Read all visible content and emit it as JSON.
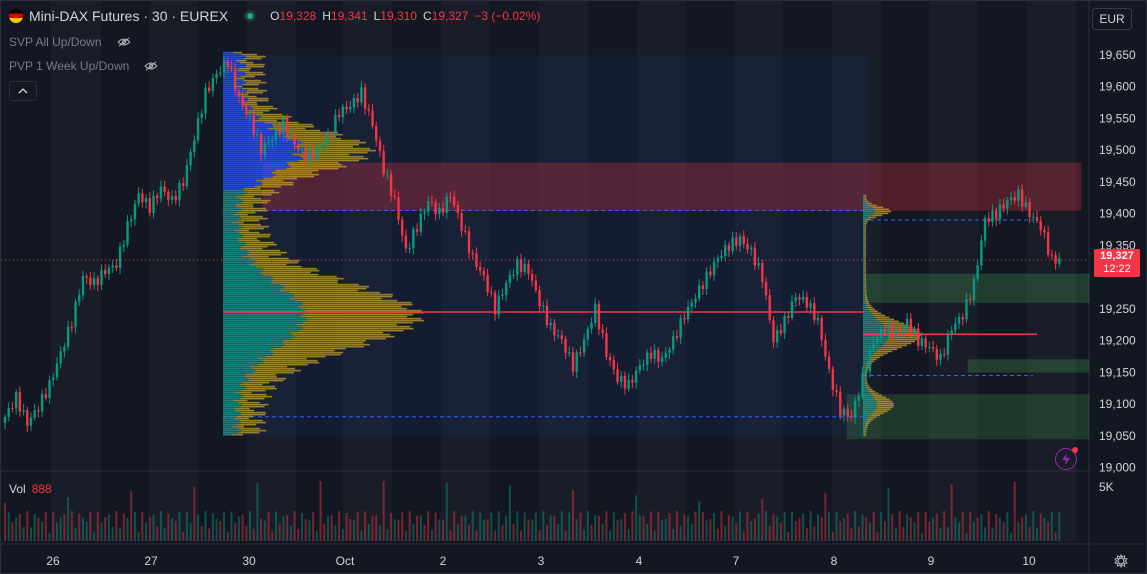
{
  "symbol": {
    "title": "Mini-DAX Futures · 30 · EUREX"
  },
  "ohlc": {
    "o_label": "O",
    "o": "19,328",
    "h_label": "H",
    "h": "19,341",
    "l_label": "L",
    "l": "19,310",
    "c_label": "C",
    "c": "19,327",
    "change": "−3 (−0.02%)"
  },
  "indicators": [
    {
      "label": "SVP All Up/Down"
    },
    {
      "label": "PVP 1 Week Up/Down"
    }
  ],
  "currency": "EUR",
  "volume": {
    "label": "Vol",
    "value": "888"
  },
  "last_price": {
    "price": "19,327",
    "countdown": "12:22"
  },
  "price_axis": [
    "19,650",
    "19,600",
    "19,550",
    "19,500",
    "19,450",
    "19,400",
    "19,350",
    "19,250",
    "19,200",
    "19,150",
    "19,100",
    "19,050",
    "19,000"
  ],
  "volume_axis": "5K",
  "time_axis": [
    "26",
    "27",
    "30",
    "Oct",
    "2",
    "3",
    "4",
    "7",
    "8",
    "9",
    "10"
  ],
  "colors": {
    "bg": "#131722",
    "up": "#089981",
    "down": "#f23645",
    "poc": "#f23645",
    "vp_up": "#2962ff",
    "vp_down": "#c9a227",
    "zone_red": "#f23645",
    "zone_green": "#4caf50"
  },
  "chart_data": {
    "type": "candlestick",
    "title": "Mini-DAX Futures · 30 · EUREX",
    "ylim": [
      19000,
      19680
    ],
    "close_series": [
      19080,
      19110,
      19070,
      19095,
      19130,
      19180,
      19230,
      19300,
      19290,
      19310,
      19320,
      19380,
      19430,
      19410,
      19440,
      19420,
      19450,
      19520,
      19590,
      19620,
      19640,
      19580,
      19550,
      19500,
      19520,
      19540,
      19510,
      19490,
      19500,
      19520,
      19560,
      19570,
      19590,
      19540,
      19470,
      19420,
      19340,
      19380,
      19420,
      19400,
      19430,
      19380,
      19330,
      19300,
      19250,
      19290,
      19320,
      19310,
      19260,
      19220,
      19200,
      19160,
      19200,
      19250,
      19180,
      19140,
      19130,
      19160,
      19180,
      19170,
      19200,
      19240,
      19270,
      19300,
      19330,
      19350,
      19360,
      19340,
      19300,
      19200,
      19230,
      19270,
      19260,
      19230,
      19150,
      19090,
      19080,
      19140,
      19200,
      19220,
      19210,
      19230,
      19200,
      19190,
      19170,
      19220,
      19240,
      19290,
      19390,
      19400,
      19420,
      19430,
      19400,
      19380,
      19327
    ],
    "annotations": {
      "poc_prices": [
        19245,
        19210
      ],
      "value_area": [
        19080,
        19405
      ],
      "zones_red": [
        [
          19405,
          19480
        ]
      ],
      "zones_green": [
        [
          19260,
          19305
        ],
        [
          19150,
          19170
        ],
        [
          19045,
          19115
        ]
      ]
    }
  }
}
